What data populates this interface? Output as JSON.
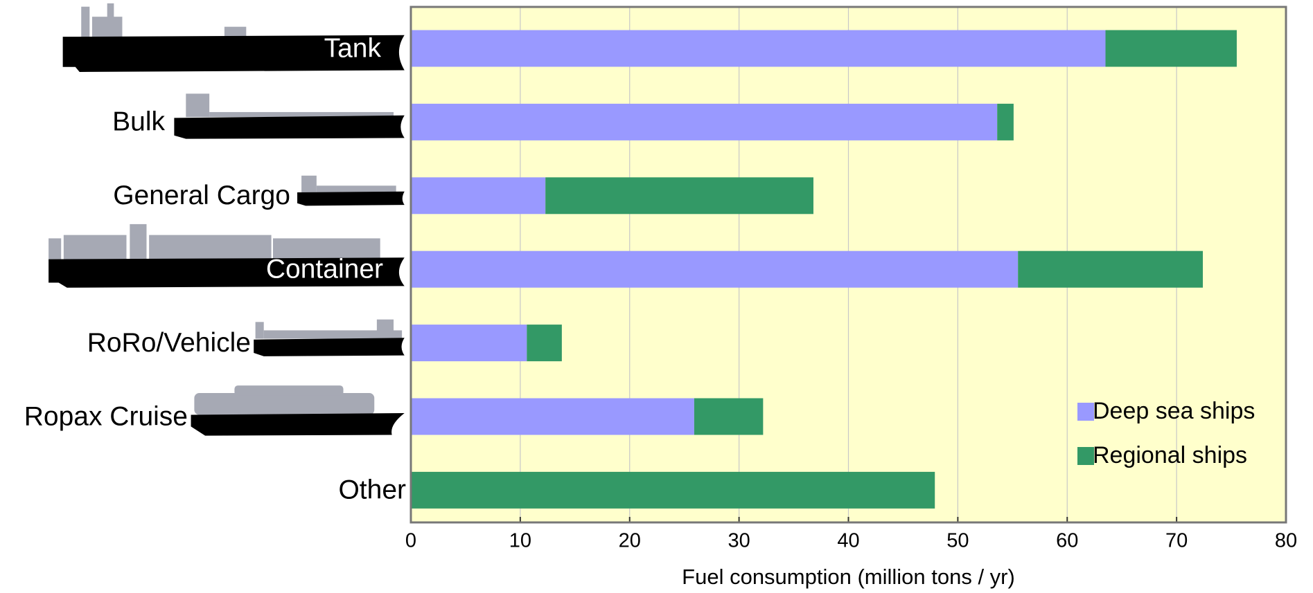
{
  "chart_data": {
    "type": "stacked_barh",
    "xlabel": "Fuel consumption (million tons / yr)",
    "categories": [
      "Tank",
      "Bulk",
      "General Cargo",
      "Container",
      "RoRo/Vehicle",
      "Ropax Cruise",
      "Other"
    ],
    "series": [
      {
        "name": "Deep sea ships",
        "color": "#9999ff",
        "values": [
          63.5,
          53.6,
          12.3,
          55.5,
          10.6,
          25.9,
          0
        ]
      },
      {
        "name": "Regional ships",
        "color": "#339966",
        "values": [
          12.0,
          1.5,
          24.5,
          16.9,
          3.2,
          6.3,
          47.9
        ]
      }
    ],
    "xlim": [
      0,
      80
    ],
    "xticks": [
      0,
      10,
      20,
      30,
      40,
      50,
      60,
      70,
      80
    ],
    "grid": true,
    "legend": "lower right",
    "background": "#ffffcc"
  }
}
